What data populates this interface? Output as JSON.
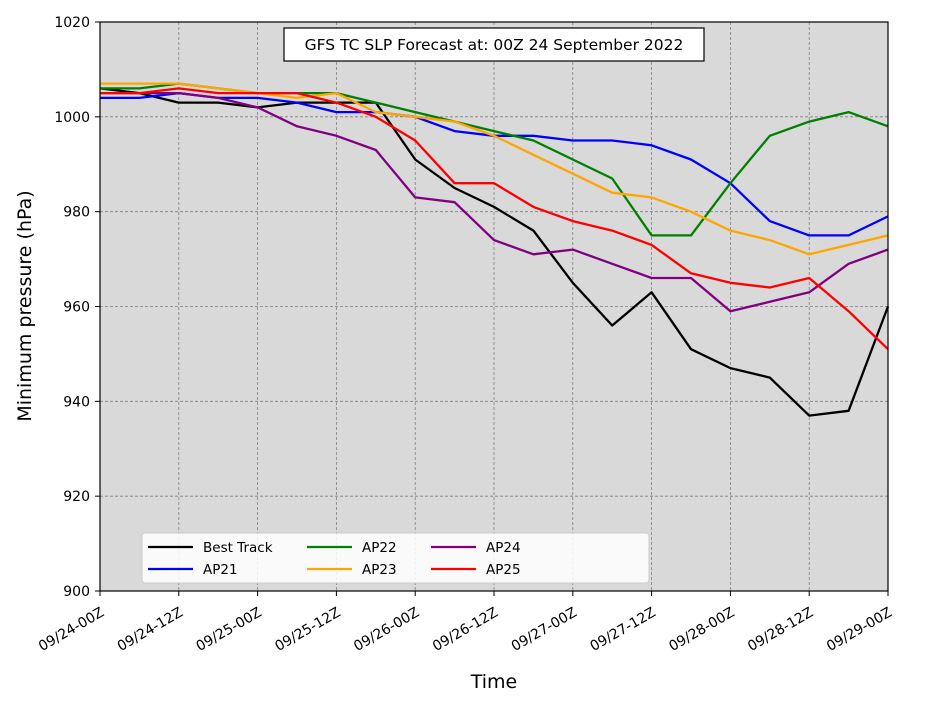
{
  "chart_data": {
    "type": "line",
    "title": "GFS TC SLP Forecast at: 00Z 24 September 2022",
    "xlabel": "Time",
    "ylabel": "Minimum pressure (hPa)",
    "ylim": [
      900,
      1020
    ],
    "yticks": [
      900,
      920,
      940,
      960,
      980,
      1000,
      1020
    ],
    "x_tick_labels": [
      "09/24-00Z",
      "09/24-12Z",
      "09/25-00Z",
      "09/25-12Z",
      "09/26-00Z",
      "09/26-12Z",
      "09/27-00Z",
      "09/27-12Z",
      "09/28-00Z",
      "09/28-12Z",
      "09/29-00Z"
    ],
    "x": [
      "09/24-00Z",
      "09/24-06Z",
      "09/24-12Z",
      "09/24-18Z",
      "09/25-00Z",
      "09/25-06Z",
      "09/25-12Z",
      "09/25-18Z",
      "09/26-00Z",
      "09/26-06Z",
      "09/26-12Z",
      "09/26-18Z",
      "09/27-00Z",
      "09/27-06Z",
      "09/27-12Z",
      "09/27-18Z",
      "09/28-00Z",
      "09/28-06Z",
      "09/28-12Z",
      "09/28-18Z",
      "09/29-00Z"
    ],
    "grid": true,
    "legend_position": "lower-left",
    "background_color": "#d9d9d9",
    "series": [
      {
        "name": "Best Track",
        "color": "#000000",
        "values": [
          1006,
          1005,
          1003,
          1003,
          1002,
          1003,
          1003,
          1003,
          991,
          985,
          981,
          976,
          965,
          956,
          963,
          951,
          947,
          945,
          937,
          938,
          960
        ]
      },
      {
        "name": "AP21",
        "color": "#0000ff",
        "values": [
          1004,
          1004,
          1005,
          1004,
          1004,
          1003,
          1001,
          1001,
          1000,
          997,
          996,
          996,
          995,
          995,
          994,
          991,
          986,
          978,
          975,
          975,
          979
        ]
      },
      {
        "name": "AP22",
        "color": "#008000",
        "values": [
          1006,
          1006,
          1007,
          1006,
          1005,
          1005,
          1005,
          1003,
          1001,
          999,
          997,
          995,
          991,
          987,
          975,
          975,
          986,
          996,
          999,
          1001,
          998
        ]
      },
      {
        "name": "AP23",
        "color": "#ffa500",
        "values": [
          1007,
          1007,
          1007,
          1006,
          1005,
          1004,
          1005,
          1001,
          1000,
          999,
          996,
          992,
          988,
          984,
          983,
          980,
          976,
          974,
          971,
          973,
          975
        ]
      },
      {
        "name": "AP24",
        "color": "#800080",
        "values": [
          1005,
          1005,
          1005,
          1004,
          1002,
          998,
          996,
          993,
          983,
          982,
          974,
          971,
          972,
          969,
          966,
          966,
          959,
          961,
          963,
          969,
          972
        ]
      },
      {
        "name": "AP25",
        "color": "#ff0000",
        "values": [
          1005,
          1005,
          1006,
          1005,
          1005,
          1005,
          1003,
          1000,
          995,
          986,
          986,
          981,
          978,
          976,
          973,
          967,
          965,
          964,
          966,
          959,
          951
        ]
      }
    ]
  }
}
